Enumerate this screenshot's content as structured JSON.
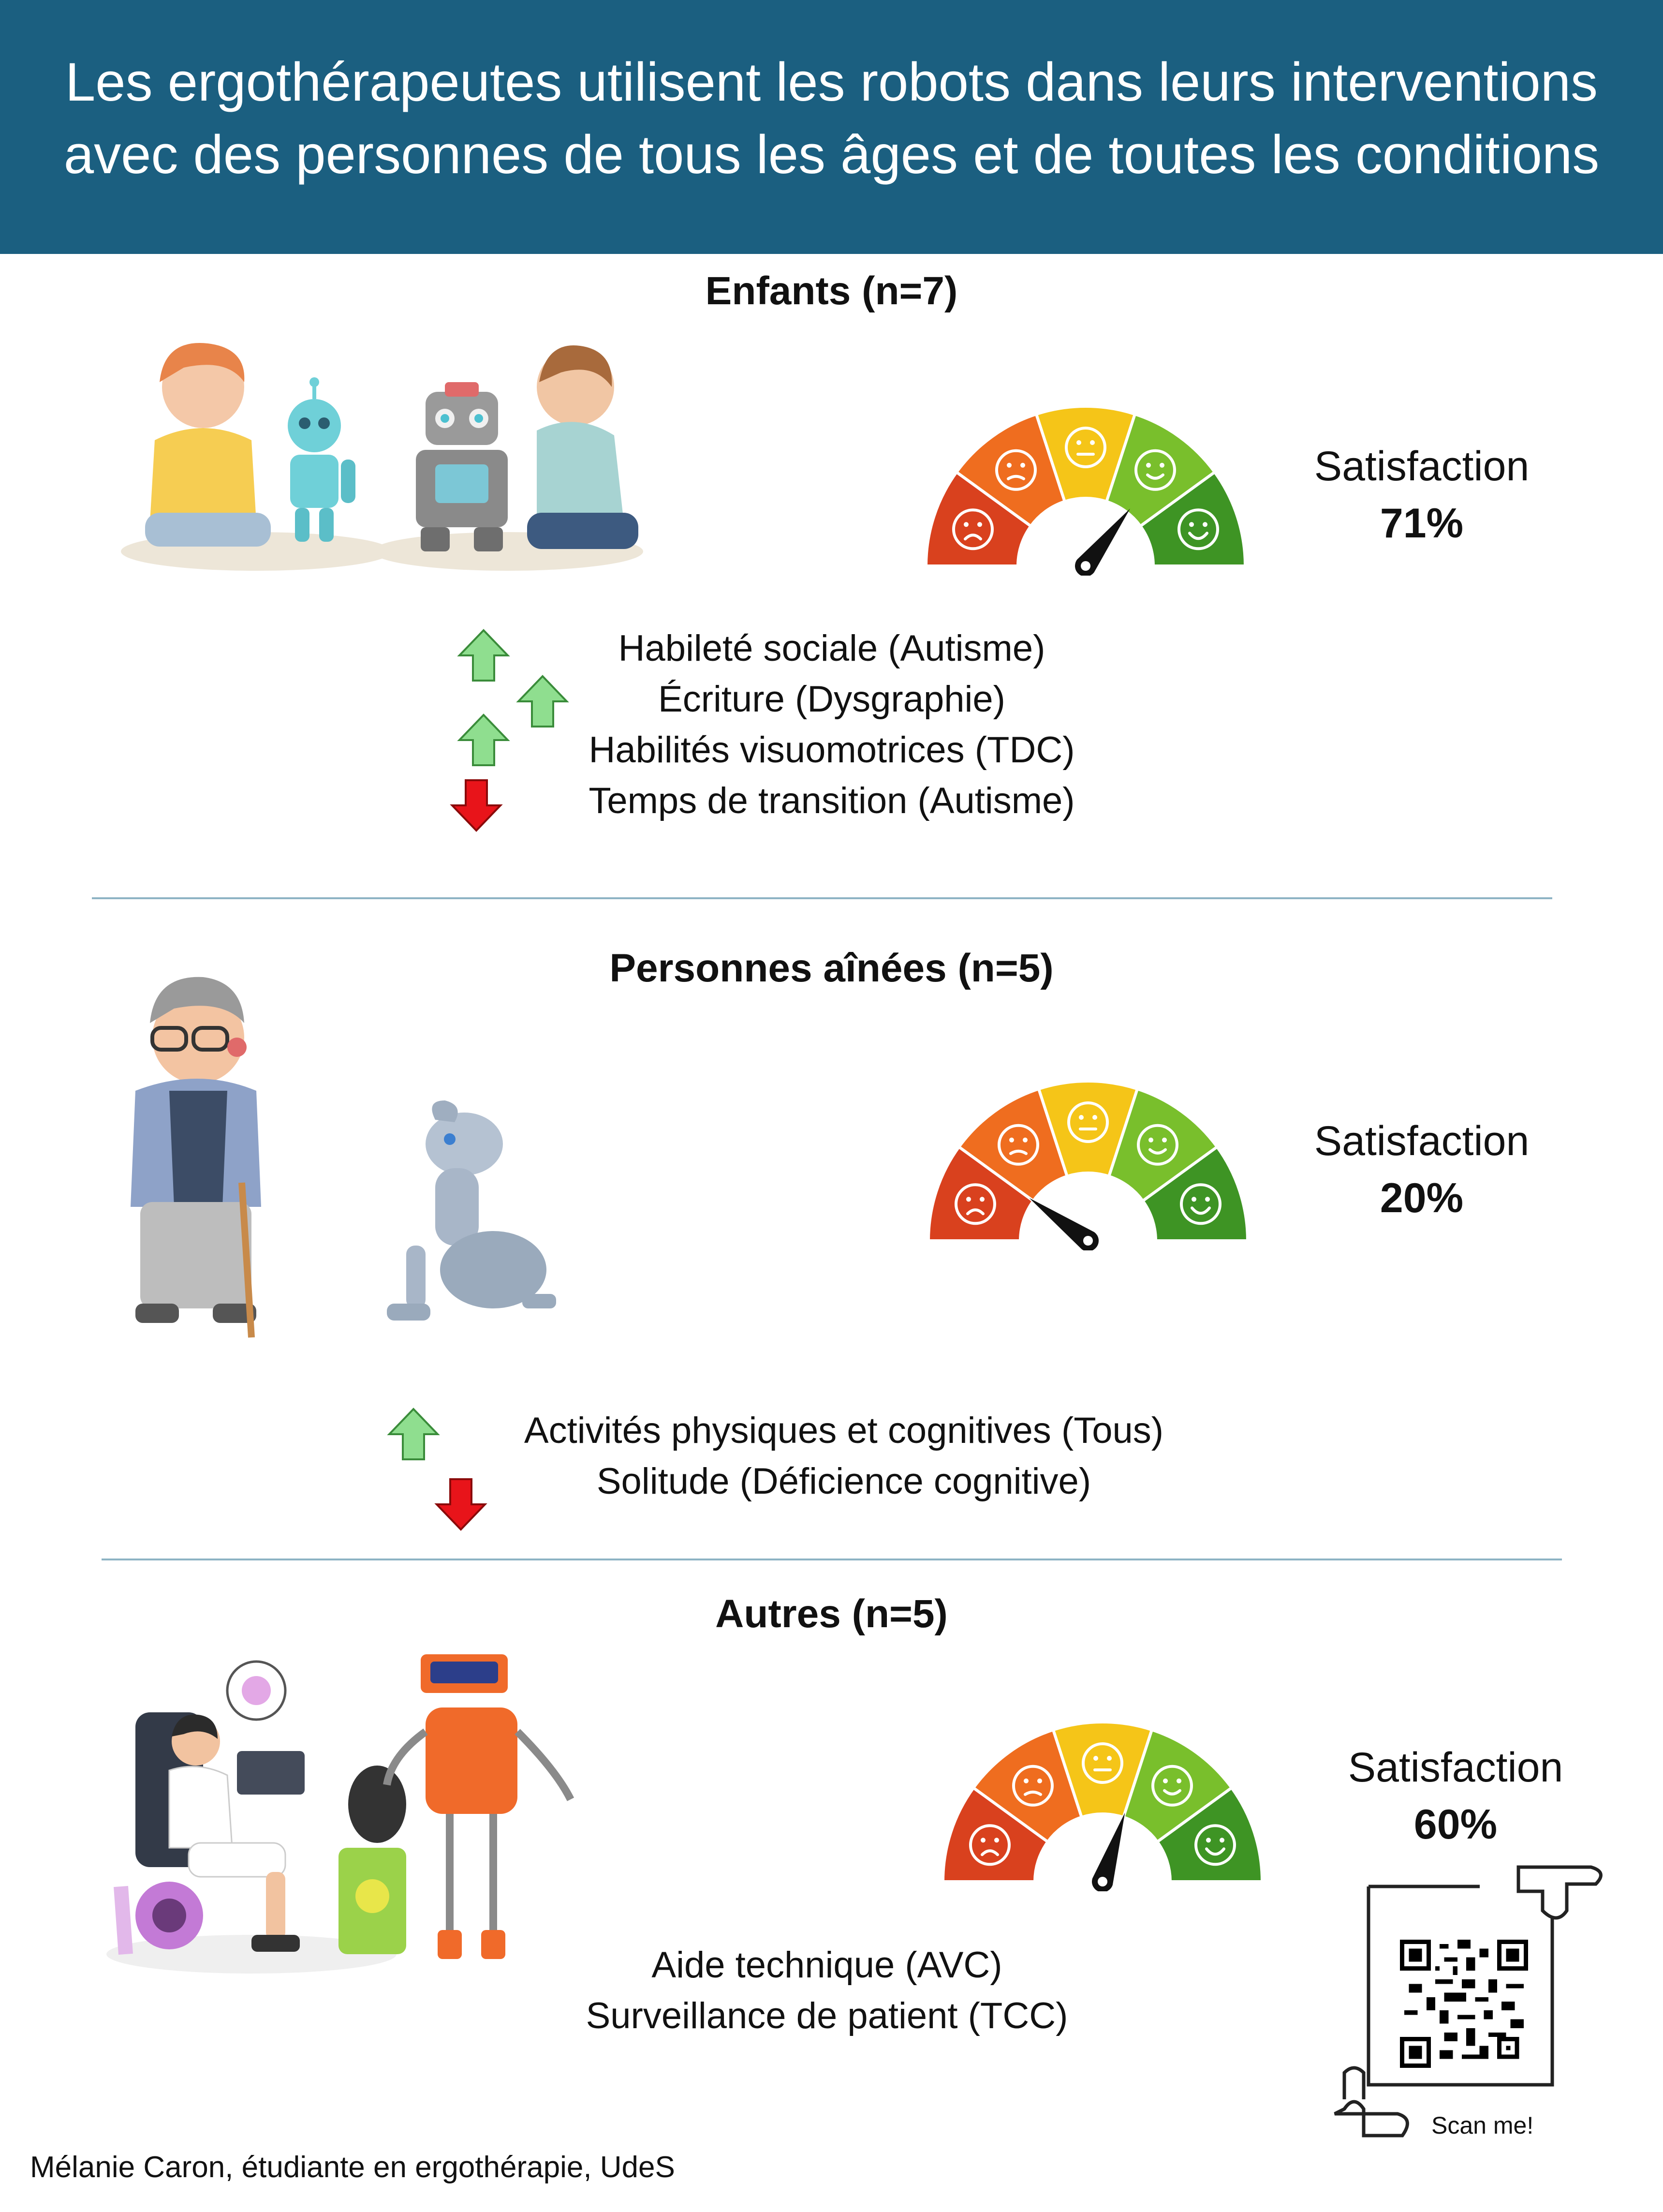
{
  "header": {
    "line1": "Les ergothérapeutes utilisent les robots dans leurs interventions",
    "line2": "avec des personnes de tous les âges et de toutes les conditions"
  },
  "sections": [
    {
      "title": "Enfants (n=7)",
      "satisfaction_label": "Satisfaction",
      "satisfaction_value": "71%",
      "satisfaction_level": 0.71,
      "effects": [
        {
          "text": "Habileté sociale (Autisme)",
          "direction": "up"
        },
        {
          "text": "Écriture (Dysgraphie)",
          "direction": "up"
        },
        {
          "text": "Habilités visuomotrices (TDC)",
          "direction": "up"
        },
        {
          "text": "Temps de transition (Autisme)",
          "direction": "down"
        }
      ]
    },
    {
      "title": "Personnes aînées (n=5)",
      "satisfaction_label": "Satisfaction",
      "satisfaction_value": "20%",
      "satisfaction_level": 0.2,
      "effects": [
        {
          "text": "Activités physiques et cognitives (Tous)",
          "direction": "up"
        },
        {
          "text": "Solitude (Déficience cognitive)",
          "direction": "down"
        }
      ]
    },
    {
      "title": "Autres (n=5)",
      "satisfaction_label": "Satisfaction",
      "satisfaction_value": "60%",
      "satisfaction_level": 0.6,
      "effects": [
        {
          "text": "Aide technique (AVC)",
          "direction": "none"
        },
        {
          "text": "Surveillance de patient (TCC)",
          "direction": "none"
        }
      ]
    }
  ],
  "qr": {
    "caption": "Scan me!"
  },
  "footer": {
    "author": "Mélanie Caron, étudiante en ergothérapie, UdeS"
  },
  "colors": {
    "header_bg": "#1b5f80",
    "gauge_red": "#d9411e",
    "gauge_orange": "#ef6d1f",
    "gauge_yellow": "#f5c518",
    "gauge_lightgreen": "#79bf2c",
    "gauge_green": "#3e9424",
    "arrow_up": "#8fde8f",
    "arrow_down": "#e8141a"
  }
}
